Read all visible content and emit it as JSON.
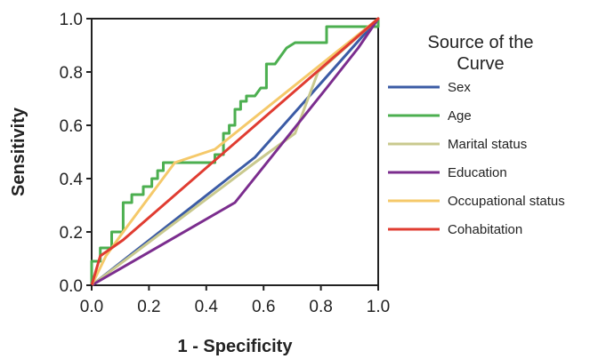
{
  "chart_data": {
    "type": "line",
    "title": "",
    "xlabel": "1 - Specificity",
    "ylabel": "Sensitivity",
    "xlim": [
      0,
      1
    ],
    "ylim": [
      0,
      1
    ],
    "xticks": [
      "0.0",
      "0.2",
      "0.4",
      "0.6",
      "0.8",
      "1.0"
    ],
    "yticks": [
      "0.0",
      "0.2",
      "0.4",
      "0.6",
      "0.8",
      "1.0"
    ],
    "grid": false,
    "legend": {
      "title": "Source of the Curve",
      "title_lines": [
        "Source of the",
        "Curve"
      ],
      "position": "right"
    },
    "series": [
      {
        "name": "Sex",
        "color": "#3b5ba5",
        "points": [
          [
            0,
            0
          ],
          [
            0.57,
            0.48
          ],
          [
            1,
            1
          ]
        ]
      },
      {
        "name": "Age",
        "color": "#4caf50",
        "points": [
          [
            0,
            0
          ],
          [
            0,
            0.09
          ],
          [
            0.03,
            0.09
          ],
          [
            0.03,
            0.14
          ],
          [
            0.07,
            0.14
          ],
          [
            0.07,
            0.2
          ],
          [
            0.11,
            0.2
          ],
          [
            0.11,
            0.31
          ],
          [
            0.14,
            0.31
          ],
          [
            0.14,
            0.34
          ],
          [
            0.18,
            0.34
          ],
          [
            0.18,
            0.37
          ],
          [
            0.21,
            0.37
          ],
          [
            0.21,
            0.4
          ],
          [
            0.23,
            0.4
          ],
          [
            0.23,
            0.43
          ],
          [
            0.25,
            0.43
          ],
          [
            0.25,
            0.46
          ],
          [
            0.43,
            0.46
          ],
          [
            0.43,
            0.49
          ],
          [
            0.46,
            0.49
          ],
          [
            0.46,
            0.57
          ],
          [
            0.48,
            0.57
          ],
          [
            0.48,
            0.6
          ],
          [
            0.5,
            0.6
          ],
          [
            0.5,
            0.66
          ],
          [
            0.52,
            0.66
          ],
          [
            0.52,
            0.69
          ],
          [
            0.54,
            0.69
          ],
          [
            0.54,
            0.71
          ],
          [
            0.57,
            0.71
          ],
          [
            0.57,
            0.71
          ],
          [
            0.59,
            0.74
          ],
          [
            0.61,
            0.74
          ],
          [
            0.61,
            0.83
          ],
          [
            0.64,
            0.83
          ],
          [
            0.64,
            0.83
          ],
          [
            0.66,
            0.86
          ],
          [
            0.68,
            0.89
          ],
          [
            0.71,
            0.91
          ],
          [
            0.82,
            0.91
          ],
          [
            0.82,
            0.97
          ],
          [
            1,
            0.97
          ],
          [
            1,
            1
          ]
        ]
      },
      {
        "name": "Marital status",
        "color": "#c9c98e",
        "points": [
          [
            0,
            0
          ],
          [
            0.57,
            0.46
          ],
          [
            0.71,
            0.57
          ],
          [
            0.79,
            0.8
          ],
          [
            1,
            1
          ]
        ]
      },
      {
        "name": "Education",
        "color": "#7b2d8e",
        "points": [
          [
            0,
            0
          ],
          [
            0.5,
            0.31
          ],
          [
            0.82,
            0.74
          ],
          [
            0.93,
            0.89
          ],
          [
            1,
            1
          ]
        ]
      },
      {
        "name": "Occupational status",
        "color": "#f5c96a",
        "points": [
          [
            0,
            0
          ],
          [
            0.05,
            0.11
          ],
          [
            0.11,
            0.2
          ],
          [
            0.29,
            0.46
          ],
          [
            0.43,
            0.51
          ],
          [
            1,
            1
          ]
        ]
      },
      {
        "name": "Cohabitation",
        "color": "#e03c31",
        "points": [
          [
            0,
            0
          ],
          [
            0.03,
            0.11
          ],
          [
            0.11,
            0.17
          ],
          [
            1,
            1
          ]
        ]
      }
    ]
  }
}
